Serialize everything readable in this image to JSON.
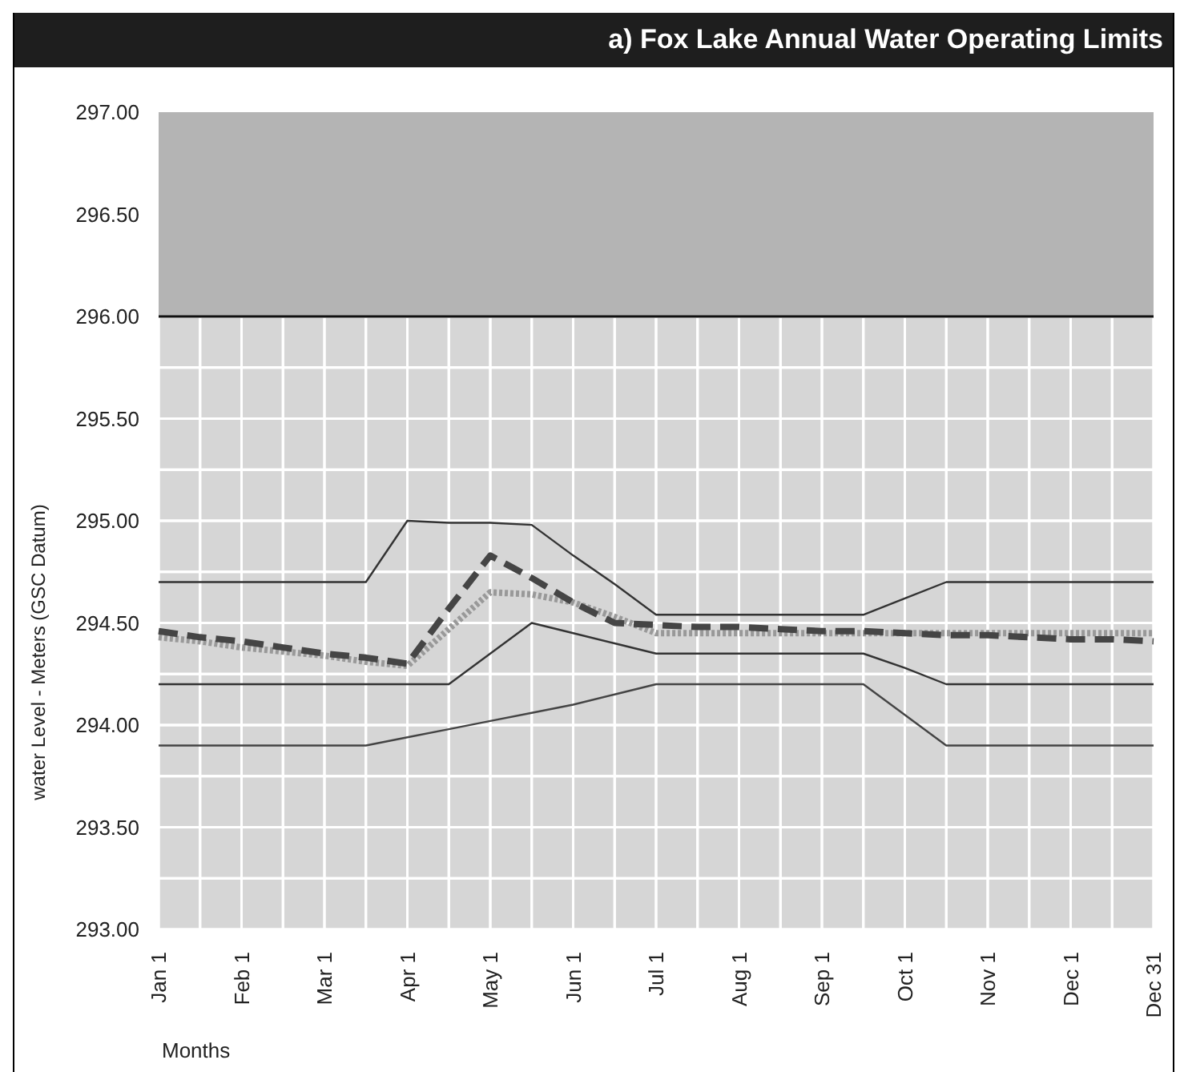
{
  "chart_data": {
    "type": "line",
    "title": "a) Fox Lake Annual Water Operating Limits",
    "xlabel": "Months",
    "ylabel": "water Level - Meters (GSC Datum)",
    "categories": [
      "Jan 1",
      null,
      "Feb 1",
      null,
      "Mar 1",
      null,
      "Apr 1",
      null,
      "May 1",
      null,
      "Jun 1",
      null,
      "Jul 1",
      null,
      "Aug 1",
      null,
      "Sep 1",
      null,
      "Oct 1",
      null,
      "Nov 1",
      null,
      "Dec 1",
      null,
      "Dec 31"
    ],
    "ylim": [
      293,
      297
    ],
    "yticks": [
      {
        "value": 293,
        "label": "293.00"
      },
      {
        "value": 293.25,
        "label": null
      },
      {
        "value": 293.5,
        "label": "293.50"
      },
      {
        "value": 293.75,
        "label": null
      },
      {
        "value": 294,
        "label": "294.00"
      },
      {
        "value": 294.25,
        "label": null
      },
      {
        "value": 294.5,
        "label": "294.50"
      },
      {
        "value": 294.75,
        "label": null
      },
      {
        "value": 295,
        "label": "295.00"
      },
      {
        "value": 295.25,
        "label": null
      },
      {
        "value": 295.5,
        "label": "295.50"
      },
      {
        "value": 295.75,
        "label": null
      },
      {
        "value": 296,
        "label": "296.00"
      },
      {
        "value": 296.25,
        "label": null
      },
      {
        "value": 296.5,
        "label": "296.50"
      },
      {
        "value": 296.75,
        "label": null
      },
      {
        "value": 297,
        "label": "297.00"
      }
    ],
    "grid": true,
    "marker": "none",
    "bands": [
      {
        "axis": "y",
        "from": 296,
        "to": 297,
        "color": "#b4b4b4"
      }
    ],
    "ref_lines": [
      {
        "axis": "y",
        "value": 296,
        "color": "#111111"
      }
    ],
    "series": [
      {
        "color": "#333333",
        "line_style": "solid",
        "values": [
          294.7,
          294.7,
          294.7,
          294.7,
          294.7,
          294.7,
          295.0,
          294.99,
          294.99,
          294.98,
          294.83,
          294.69,
          294.54,
          294.54,
          294.54,
          294.54,
          294.54,
          294.54,
          294.62,
          294.7,
          294.7,
          294.7,
          294.7,
          294.7,
          294.7
        ]
      },
      {
        "color": "#333333",
        "line_style": "solid",
        "values": [
          294.2,
          294.2,
          294.2,
          294.2,
          294.2,
          294.2,
          294.2,
          294.2,
          294.35,
          294.5,
          294.45,
          294.4,
          294.35,
          294.35,
          294.35,
          294.35,
          294.35,
          294.35,
          294.28,
          294.2,
          294.2,
          294.2,
          294.2,
          294.2,
          294.2
        ]
      },
      {
        "color": "#444444",
        "line_style": "solid",
        "values": [
          293.9,
          293.9,
          293.9,
          293.9,
          293.9,
          293.9,
          293.94,
          293.98,
          294.02,
          294.06,
          294.1,
          294.15,
          294.2,
          294.2,
          294.2,
          294.2,
          294.2,
          294.2,
          294.05,
          293.9,
          293.9,
          293.9,
          293.9,
          293.9,
          293.9
        ]
      },
      {
        "color": "#999999",
        "line_style": "dotted",
        "values": [
          294.43,
          294.41,
          294.38,
          294.36,
          294.34,
          294.31,
          294.29,
          294.47,
          294.65,
          294.64,
          294.6,
          294.53,
          294.45,
          294.45,
          294.45,
          294.45,
          294.45,
          294.45,
          294.45,
          294.45,
          294.45,
          294.45,
          294.45,
          294.45,
          294.45
        ]
      },
      {
        "color": "#454545",
        "line_style": "dashed",
        "values": [
          294.46,
          294.43,
          294.41,
          294.38,
          294.35,
          294.33,
          294.3,
          294.57,
          294.83,
          294.72,
          294.6,
          294.5,
          294.49,
          294.48,
          294.48,
          294.47,
          294.46,
          294.46,
          294.45,
          294.44,
          294.44,
          294.43,
          294.42,
          294.42,
          294.41
        ]
      }
    ]
  }
}
